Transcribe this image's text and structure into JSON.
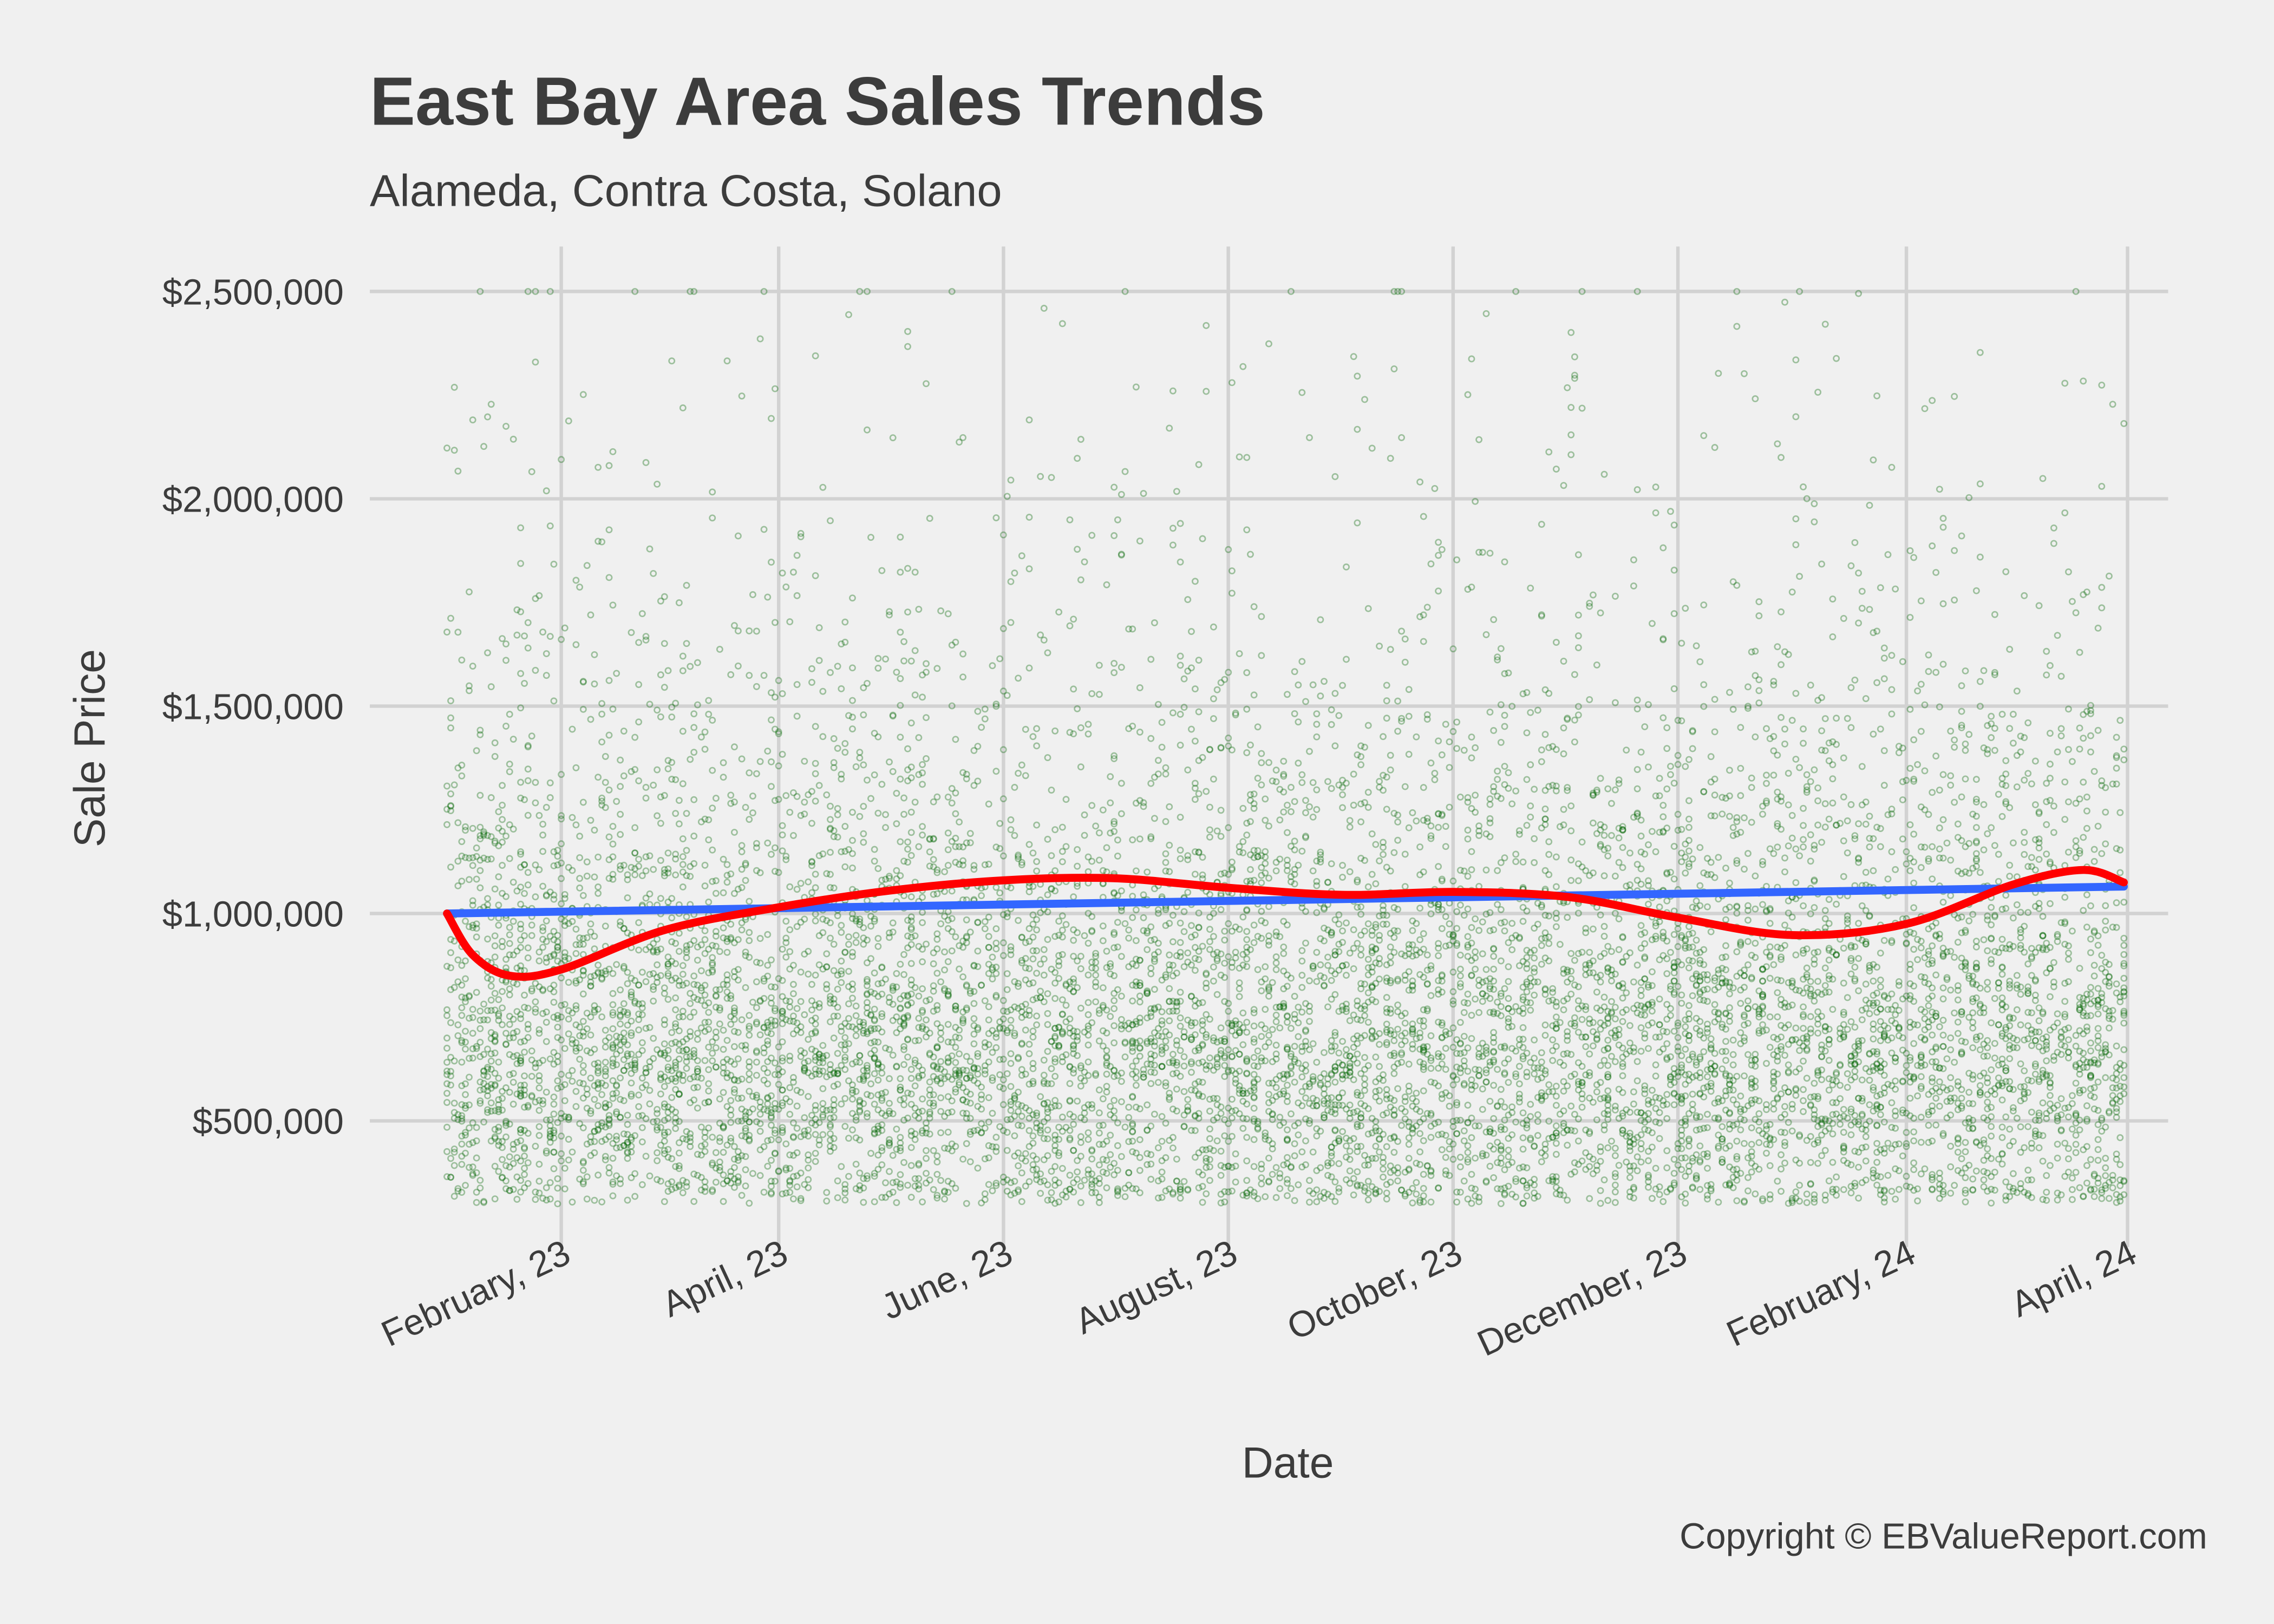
{
  "chart_data": {
    "type": "scatter",
    "title": "East Bay Area Sales Trends",
    "subtitle": "Alameda, Contra Costa, Solano",
    "xlabel": "Date",
    "ylabel": "Sale Price",
    "caption": "Copyright  © EBValueReport.com",
    "xlim": [
      "2022-12-20",
      "2024-04-10"
    ],
    "ylim": [
      255000,
      2610000
    ],
    "grid": true,
    "legend": "none",
    "x_ticks": [
      {
        "date": "2023-02-01",
        "label": "February, 23"
      },
      {
        "date": "2023-04-01",
        "label": "April, 23"
      },
      {
        "date": "2023-06-01",
        "label": "June, 23"
      },
      {
        "date": "2023-08-01",
        "label": "August, 23"
      },
      {
        "date": "2023-10-01",
        "label": "October, 23"
      },
      {
        "date": "2023-12-01",
        "label": "December, 23"
      },
      {
        "date": "2024-02-01",
        "label": "February, 24"
      },
      {
        "date": "2024-04-01",
        "label": "April, 24"
      }
    ],
    "y_ticks": [
      {
        "value": 500000,
        "label": "$500,000"
      },
      {
        "value": 1000000,
        "label": "$1,000,000"
      },
      {
        "value": 1500000,
        "label": "$1,500,000"
      },
      {
        "value": 2000000,
        "label": "$2,000,000"
      },
      {
        "value": 2500000,
        "label": "$2,500,000"
      }
    ],
    "scatter": {
      "x_range": [
        "2023-01-01",
        "2024-03-31"
      ],
      "y_range": [
        300000,
        2500000
      ],
      "color": "#006400"
    },
    "series": [
      {
        "kind": "linear-fit",
        "color": "#3366ff",
        "points": [
          {
            "x": "2023-01-01",
            "y": 1000000
          },
          {
            "x": "2024-03-31",
            "y": 1065000
          }
        ]
      },
      {
        "kind": "smooth",
        "color": "#ff0000",
        "points": [
          {
            "x": "2023-01-01",
            "y": 1000000
          },
          {
            "x": "2023-01-08",
            "y": 900000
          },
          {
            "x": "2023-01-18",
            "y": 850000
          },
          {
            "x": "2023-02-01",
            "y": 865000
          },
          {
            "x": "2023-03-01",
            "y": 960000
          },
          {
            "x": "2023-04-01",
            "y": 1015000
          },
          {
            "x": "2023-05-01",
            "y": 1055000
          },
          {
            "x": "2023-06-01",
            "y": 1080000
          },
          {
            "x": "2023-07-01",
            "y": 1085000
          },
          {
            "x": "2023-08-01",
            "y": 1062000
          },
          {
            "x": "2023-09-01",
            "y": 1045000
          },
          {
            "x": "2023-10-01",
            "y": 1052000
          },
          {
            "x": "2023-11-01",
            "y": 1040000
          },
          {
            "x": "2023-12-01",
            "y": 990000
          },
          {
            "x": "2024-01-01",
            "y": 948000
          },
          {
            "x": "2024-02-01",
            "y": 975000
          },
          {
            "x": "2024-03-01",
            "y": 1070000
          },
          {
            "x": "2024-03-20",
            "y": 1105000
          },
          {
            "x": "2024-03-31",
            "y": 1075000
          }
        ]
      }
    ]
  }
}
